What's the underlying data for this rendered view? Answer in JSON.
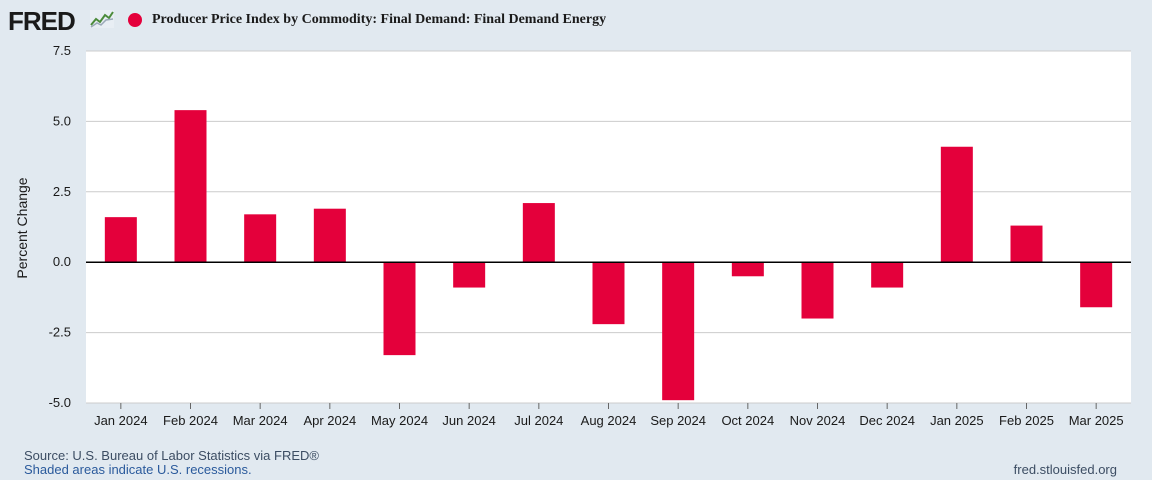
{
  "header": {
    "logo_text": "FRED",
    "logo_mark_icon": "fred-chart-logo-icon",
    "series_title": "Producer Price Index by Commodity: Final Demand: Final Demand Energy"
  },
  "colors": {
    "bar": "#e4003b",
    "background": "#e1e9f0",
    "plot_background": "#ffffff",
    "gridline": "#cccccc",
    "zero_line": "#000000"
  },
  "footer": {
    "source": "Source: U.S. Bureau of Labor Statistics via FRED®",
    "recession_note": "Shaded areas indicate U.S. recessions.",
    "url": "fred.stlouisfed.org"
  },
  "chart_data": {
    "type": "bar",
    "title": "Producer Price Index by Commodity: Final Demand: Final Demand Energy",
    "xlabel": "",
    "ylabel": "Percent Change",
    "categories": [
      "Jan 2024",
      "Feb 2024",
      "Mar 2024",
      "Apr 2024",
      "May 2024",
      "Jun 2024",
      "Jul 2024",
      "Aug 2024",
      "Sep 2024",
      "Oct 2024",
      "Nov 2024",
      "Dec 2024",
      "Jan 2025",
      "Feb 2025",
      "Mar 2025"
    ],
    "values": [
      1.6,
      5.4,
      1.7,
      1.9,
      -3.3,
      -0.9,
      2.1,
      -2.2,
      -4.9,
      -0.5,
      -2.0,
      -0.9,
      4.1,
      1.3,
      -1.6
    ],
    "ylim": [
      -5.0,
      7.5
    ],
    "yticks": [
      "7.5",
      "5.0",
      "2.5",
      "0.0",
      "-2.5",
      "-5.0"
    ],
    "grid": true,
    "legend": "top-left"
  }
}
